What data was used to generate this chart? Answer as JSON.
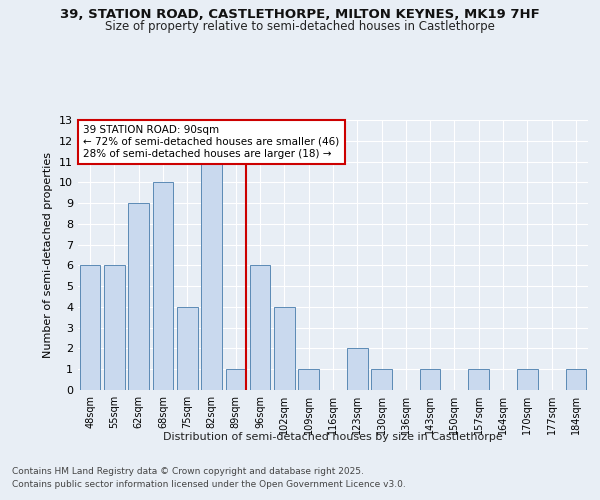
{
  "title_line1": "39, STATION ROAD, CASTLETHORPE, MILTON KEYNES, MK19 7HF",
  "title_line2": "Size of property relative to semi-detached houses in Castlethorpe",
  "xlabel": "Distribution of semi-detached houses by size in Castlethorpe",
  "ylabel": "Number of semi-detached properties",
  "categories": [
    "48sqm",
    "55sqm",
    "62sqm",
    "68sqm",
    "75sqm",
    "82sqm",
    "89sqm",
    "96sqm",
    "102sqm",
    "109sqm",
    "116sqm",
    "123sqm",
    "130sqm",
    "136sqm",
    "143sqm",
    "150sqm",
    "157sqm",
    "164sqm",
    "170sqm",
    "177sqm",
    "184sqm"
  ],
  "values": [
    6,
    6,
    9,
    10,
    4,
    11,
    1,
    6,
    4,
    1,
    0,
    2,
    1,
    0,
    1,
    0,
    1,
    0,
    1,
    0,
    1
  ],
  "bar_color": "#c9d9ee",
  "bar_edge_color": "#5b8ab5",
  "highlight_index": 6,
  "highlight_line_color": "#cc0000",
  "annotation_text": "39 STATION ROAD: 90sqm\n← 72% of semi-detached houses are smaller (46)\n28% of semi-detached houses are larger (18) →",
  "annotation_box_color": "#ffffff",
  "annotation_box_edge": "#cc0000",
  "ylim": [
    0,
    13
  ],
  "yticks": [
    0,
    1,
    2,
    3,
    4,
    5,
    6,
    7,
    8,
    9,
    10,
    11,
    12,
    13
  ],
  "bg_color": "#e8eef5",
  "plot_bg_color": "#e8eef5",
  "grid_color": "#ffffff",
  "footer_line1": "Contains HM Land Registry data © Crown copyright and database right 2025.",
  "footer_line2": "Contains public sector information licensed under the Open Government Licence v3.0.",
  "title_fontsize": 9.5,
  "subtitle_fontsize": 8.5,
  "footer_fontsize": 6.5
}
